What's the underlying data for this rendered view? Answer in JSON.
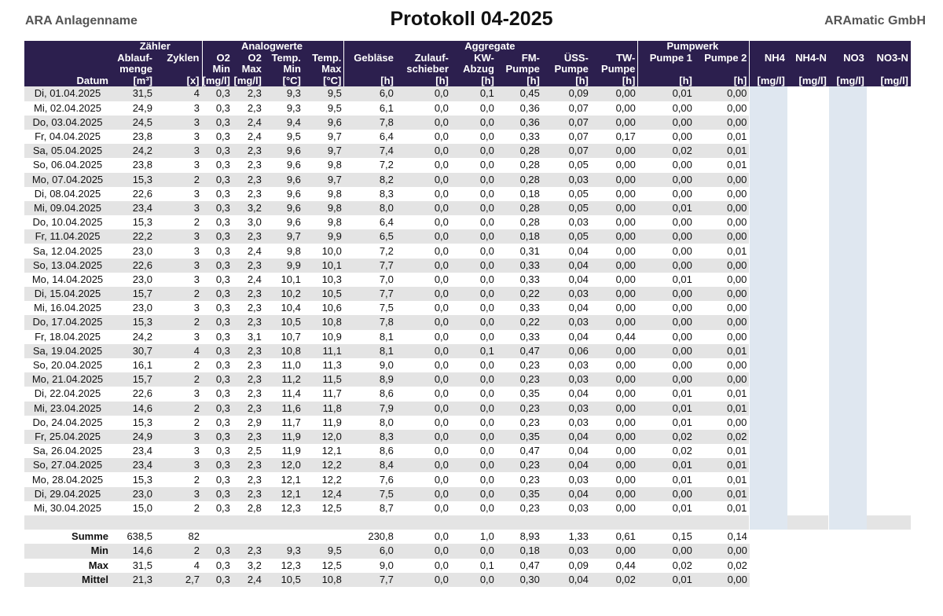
{
  "header": {
    "plant_name": "ARA Anlagenname",
    "title": "Protokoll 04-2025",
    "company": "ARAmatic GmbH"
  },
  "colors": {
    "header_bg": "#2c1f4e",
    "stripe": "#e4e4e4",
    "lab_cell": "#dfe7f0"
  },
  "groups": [
    "Zähler",
    "Analogwerte",
    "Aggregate",
    "Pumpwerk"
  ],
  "columns": [
    {
      "l1": "",
      "l2": "",
      "l3": "",
      "l4": "Datum"
    },
    {
      "l1": "",
      "l2": "Ablauf-",
      "l3": "menge",
      "l4": "[m³]"
    },
    {
      "l1": "",
      "l2": "Zyklen",
      "l3": "",
      "l4": "[x]"
    },
    {
      "l1": "",
      "l2": "O2",
      "l3": "Min",
      "l4": "[mg/l]"
    },
    {
      "l1": "",
      "l2": "O2",
      "l3": "Max",
      "l4": "[mg/l]"
    },
    {
      "l1": "",
      "l2": "Temp.",
      "l3": "Min",
      "l4": "[°C]"
    },
    {
      "l1": "",
      "l2": "Temp.",
      "l3": "Max",
      "l4": "[°C]"
    },
    {
      "l1": "",
      "l2": "Gebläse",
      "l3": "",
      "l4": "[h]"
    },
    {
      "l1": "",
      "l2": "Zulauf-",
      "l3": "schieber",
      "l4": "[h]"
    },
    {
      "l1": "",
      "l2": "KW-",
      "l3": "Abzug",
      "l4": "[h]"
    },
    {
      "l1": "",
      "l2": "FM-",
      "l3": "Pumpe",
      "l4": "[h]"
    },
    {
      "l1": "",
      "l2": "ÜSS-",
      "l3": "Pumpe",
      "l4": "[h]"
    },
    {
      "l1": "",
      "l2": "TW-",
      "l3": "Pumpe",
      "l4": "[h]"
    },
    {
      "l1": "",
      "l2": "Pumpe 1",
      "l3": "",
      "l4": "[h]"
    },
    {
      "l1": "",
      "l2": "Pumpe 2",
      "l3": "",
      "l4": "[h]"
    },
    {
      "l1": "",
      "l2": "NH4",
      "l3": "",
      "l4": "[mg/l]"
    },
    {
      "l1": "",
      "l2": "NH4-N",
      "l3": "",
      "l4": "[mg/l]"
    },
    {
      "l1": "",
      "l2": "NO3",
      "l3": "",
      "l4": "[mg/l]"
    },
    {
      "l1": "",
      "l2": "NO3-N",
      "l3": "",
      "l4": "[mg/l]"
    }
  ],
  "rows": [
    [
      "Di, 01.04.2025",
      "31,5",
      "4",
      "0,3",
      "2,3",
      "9,3",
      "9,5",
      "6,0",
      "0,0",
      "0,1",
      "0,45",
      "0,09",
      "0,00",
      "0,01",
      "0,00"
    ],
    [
      "Mi, 02.04.2025",
      "24,9",
      "3",
      "0,3",
      "2,3",
      "9,3",
      "9,5",
      "6,1",
      "0,0",
      "0,0",
      "0,36",
      "0,07",
      "0,00",
      "0,00",
      "0,00"
    ],
    [
      "Do, 03.04.2025",
      "24,5",
      "3",
      "0,3",
      "2,4",
      "9,4",
      "9,6",
      "7,8",
      "0,0",
      "0,0",
      "0,36",
      "0,07",
      "0,00",
      "0,00",
      "0,00"
    ],
    [
      "Fr, 04.04.2025",
      "23,8",
      "3",
      "0,3",
      "2,4",
      "9,5",
      "9,7",
      "6,4",
      "0,0",
      "0,0",
      "0,33",
      "0,07",
      "0,17",
      "0,00",
      "0,01"
    ],
    [
      "Sa, 05.04.2025",
      "24,2",
      "3",
      "0,3",
      "2,3",
      "9,6",
      "9,7",
      "7,4",
      "0,0",
      "0,0",
      "0,28",
      "0,07",
      "0,00",
      "0,02",
      "0,01"
    ],
    [
      "So, 06.04.2025",
      "23,8",
      "3",
      "0,3",
      "2,3",
      "9,6",
      "9,8",
      "7,2",
      "0,0",
      "0,0",
      "0,28",
      "0,05",
      "0,00",
      "0,00",
      "0,01"
    ],
    [
      "Mo, 07.04.2025",
      "15,3",
      "2",
      "0,3",
      "2,3",
      "9,6",
      "9,7",
      "8,2",
      "0,0",
      "0,0",
      "0,28",
      "0,03",
      "0,00",
      "0,00",
      "0,00"
    ],
    [
      "Di, 08.04.2025",
      "22,6",
      "3",
      "0,3",
      "2,3",
      "9,6",
      "9,8",
      "8,3",
      "0,0",
      "0,0",
      "0,18",
      "0,05",
      "0,00",
      "0,00",
      "0,00"
    ],
    [
      "Mi, 09.04.2025",
      "23,4",
      "3",
      "0,3",
      "3,2",
      "9,6",
      "9,8",
      "8,0",
      "0,0",
      "0,0",
      "0,28",
      "0,05",
      "0,00",
      "0,01",
      "0,00"
    ],
    [
      "Do, 10.04.2025",
      "15,3",
      "2",
      "0,3",
      "3,0",
      "9,6",
      "9,8",
      "6,4",
      "0,0",
      "0,0",
      "0,28",
      "0,03",
      "0,00",
      "0,00",
      "0,00"
    ],
    [
      "Fr, 11.04.2025",
      "22,2",
      "3",
      "0,3",
      "2,3",
      "9,7",
      "9,9",
      "6,5",
      "0,0",
      "0,0",
      "0,18",
      "0,05",
      "0,00",
      "0,00",
      "0,00"
    ],
    [
      "Sa, 12.04.2025",
      "23,0",
      "3",
      "0,3",
      "2,4",
      "9,8",
      "10,0",
      "7,2",
      "0,0",
      "0,0",
      "0,31",
      "0,04",
      "0,00",
      "0,00",
      "0,01"
    ],
    [
      "So, 13.04.2025",
      "22,6",
      "3",
      "0,3",
      "2,3",
      "9,9",
      "10,1",
      "7,7",
      "0,0",
      "0,0",
      "0,33",
      "0,04",
      "0,00",
      "0,00",
      "0,00"
    ],
    [
      "Mo, 14.04.2025",
      "23,0",
      "3",
      "0,3",
      "2,4",
      "10,1",
      "10,3",
      "7,0",
      "0,0",
      "0,0",
      "0,33",
      "0,04",
      "0,00",
      "0,01",
      "0,00"
    ],
    [
      "Di, 15.04.2025",
      "15,7",
      "2",
      "0,3",
      "2,3",
      "10,2",
      "10,5",
      "7,7",
      "0,0",
      "0,0",
      "0,22",
      "0,03",
      "0,00",
      "0,00",
      "0,00"
    ],
    [
      "Mi, 16.04.2025",
      "23,0",
      "3",
      "0,3",
      "2,3",
      "10,4",
      "10,6",
      "7,5",
      "0,0",
      "0,0",
      "0,33",
      "0,04",
      "0,00",
      "0,00",
      "0,00"
    ],
    [
      "Do, 17.04.2025",
      "15,3",
      "2",
      "0,3",
      "2,3",
      "10,5",
      "10,8",
      "7,8",
      "0,0",
      "0,0",
      "0,22",
      "0,03",
      "0,00",
      "0,00",
      "0,00"
    ],
    [
      "Fr, 18.04.2025",
      "24,2",
      "3",
      "0,3",
      "3,1",
      "10,7",
      "10,9",
      "8,1",
      "0,0",
      "0,0",
      "0,33",
      "0,04",
      "0,44",
      "0,00",
      "0,00"
    ],
    [
      "Sa, 19.04.2025",
      "30,7",
      "4",
      "0,3",
      "2,3",
      "10,8",
      "11,1",
      "8,1",
      "0,0",
      "0,1",
      "0,47",
      "0,06",
      "0,00",
      "0,00",
      "0,01"
    ],
    [
      "So, 20.04.2025",
      "16,1",
      "2",
      "0,3",
      "2,3",
      "11,0",
      "11,3",
      "9,0",
      "0,0",
      "0,0",
      "0,23",
      "0,03",
      "0,00",
      "0,00",
      "0,00"
    ],
    [
      "Mo, 21.04.2025",
      "15,7",
      "2",
      "0,3",
      "2,3",
      "11,2",
      "11,5",
      "8,9",
      "0,0",
      "0,0",
      "0,23",
      "0,03",
      "0,00",
      "0,00",
      "0,00"
    ],
    [
      "Di, 22.04.2025",
      "22,6",
      "3",
      "0,3",
      "2,3",
      "11,4",
      "11,7",
      "8,6",
      "0,0",
      "0,0",
      "0,35",
      "0,04",
      "0,00",
      "0,01",
      "0,01"
    ],
    [
      "Mi, 23.04.2025",
      "14,6",
      "2",
      "0,3",
      "2,3",
      "11,6",
      "11,8",
      "7,9",
      "0,0",
      "0,0",
      "0,23",
      "0,03",
      "0,00",
      "0,01",
      "0,01"
    ],
    [
      "Do, 24.04.2025",
      "15,3",
      "2",
      "0,3",
      "2,9",
      "11,7",
      "11,9",
      "8,0",
      "0,0",
      "0,0",
      "0,23",
      "0,03",
      "0,00",
      "0,01",
      "0,00"
    ],
    [
      "Fr, 25.04.2025",
      "24,9",
      "3",
      "0,3",
      "2,3",
      "11,9",
      "12,0",
      "8,3",
      "0,0",
      "0,0",
      "0,35",
      "0,04",
      "0,00",
      "0,02",
      "0,02"
    ],
    [
      "Sa, 26.04.2025",
      "23,4",
      "3",
      "0,3",
      "2,5",
      "11,9",
      "12,1",
      "8,6",
      "0,0",
      "0,0",
      "0,47",
      "0,04",
      "0,00",
      "0,02",
      "0,01"
    ],
    [
      "So, 27.04.2025",
      "23,4",
      "3",
      "0,3",
      "2,3",
      "12,0",
      "12,2",
      "8,4",
      "0,0",
      "0,0",
      "0,23",
      "0,04",
      "0,00",
      "0,01",
      "0,01"
    ],
    [
      "Mo, 28.04.2025",
      "15,3",
      "2",
      "0,3",
      "2,3",
      "12,1",
      "12,2",
      "7,6",
      "0,0",
      "0,0",
      "0,23",
      "0,03",
      "0,00",
      "0,01",
      "0,01"
    ],
    [
      "Di, 29.04.2025",
      "23,0",
      "3",
      "0,3",
      "2,3",
      "12,1",
      "12,4",
      "7,5",
      "0,0",
      "0,0",
      "0,35",
      "0,04",
      "0,00",
      "0,00",
      "0,01"
    ],
    [
      "Mi, 30.04.2025",
      "15,0",
      "2",
      "0,3",
      "2,8",
      "12,3",
      "12,5",
      "8,7",
      "0,0",
      "0,0",
      "0,23",
      "0,03",
      "0,00",
      "0,01",
      "0,01"
    ]
  ],
  "summary": [
    [
      "Summe",
      "638,5",
      "82",
      "",
      "",
      "",
      "",
      "230,8",
      "0,0",
      "1,0",
      "8,93",
      "1,33",
      "0,61",
      "0,15",
      "0,14"
    ],
    [
      "Min",
      "14,6",
      "2",
      "0,3",
      "2,3",
      "9,3",
      "9,5",
      "6,0",
      "0,0",
      "0,0",
      "0,18",
      "0,03",
      "0,00",
      "0,00",
      "0,00"
    ],
    [
      "Max",
      "31,5",
      "4",
      "0,3",
      "3,2",
      "12,3",
      "12,5",
      "9,0",
      "0,0",
      "0,1",
      "0,47",
      "0,09",
      "0,44",
      "0,02",
      "0,02"
    ],
    [
      "Mittel",
      "21,3",
      "2,7",
      "0,3",
      "2,4",
      "10,5",
      "10,8",
      "7,7",
      "0,0",
      "0,0",
      "0,30",
      "0,04",
      "0,02",
      "0,01",
      "0,00"
    ]
  ]
}
